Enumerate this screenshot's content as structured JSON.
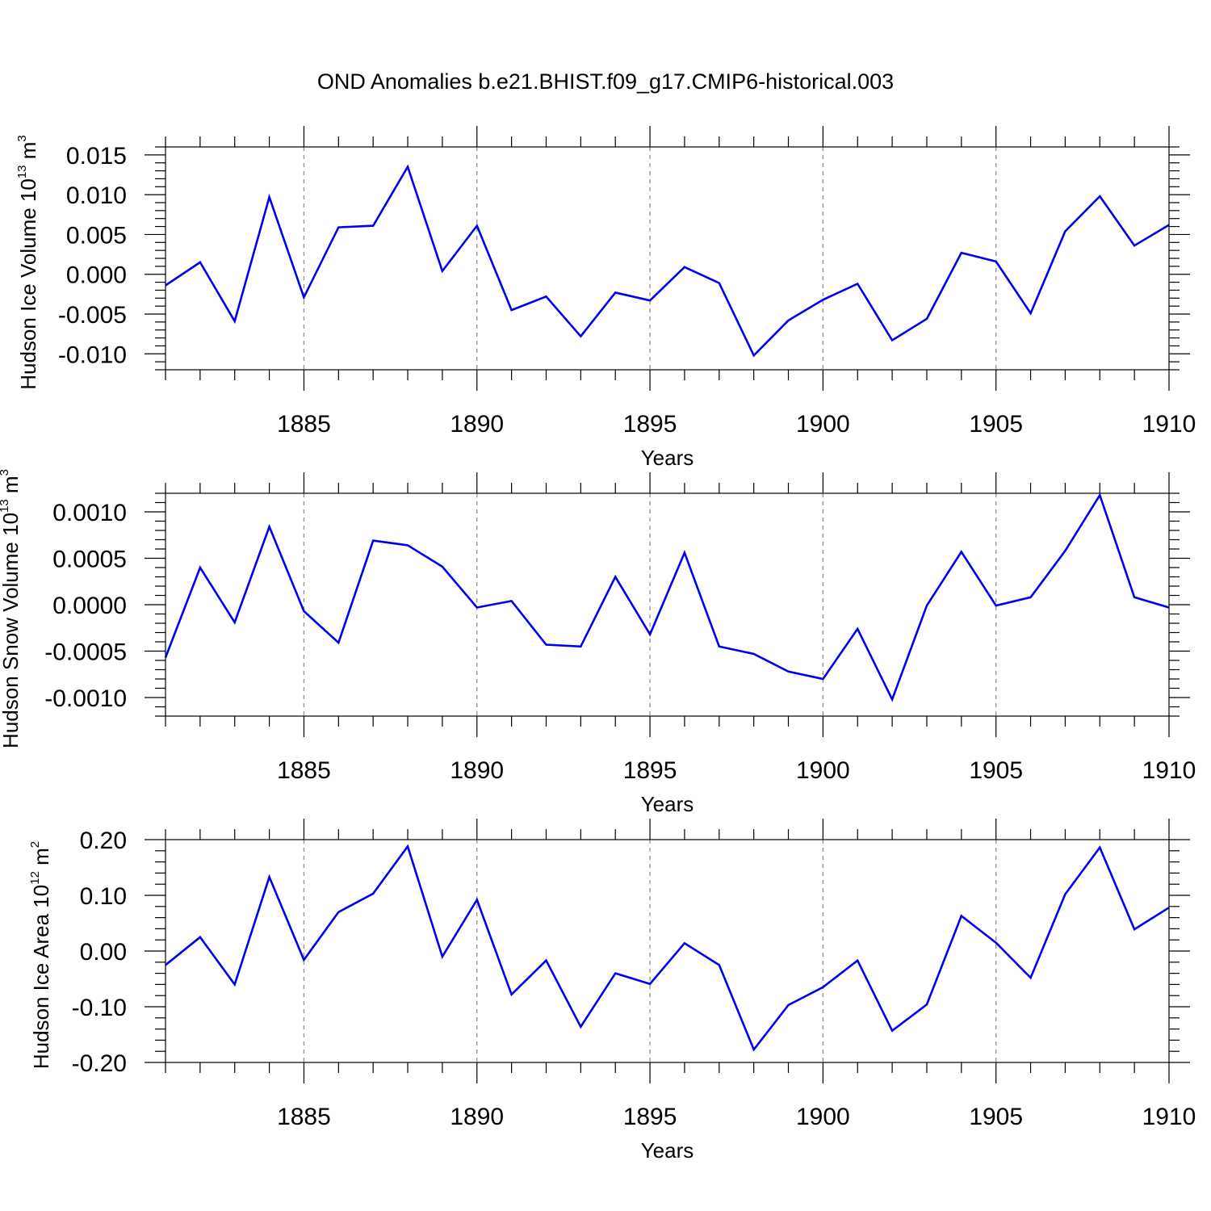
{
  "title": "OND Anomalies b.e21.BHIST.f09_g17.CMIP6-historical.003",
  "chart_data": [
    {
      "type": "line",
      "title": "OND Anomalies b.e21.BHIST.f09_g17.CMIP6-historical.003",
      "xlabel": "Years",
      "ylabel_main": "Hudson Ice Volume 10",
      "ylabel_exp": "13",
      "ylabel_unit": " m",
      "ylabel_unit_exp": "3",
      "xlim": [
        1881,
        1910
      ],
      "ylim": [
        -0.012,
        0.016
      ],
      "yticks": [
        -0.01,
        -0.005,
        0.0,
        0.005,
        0.01,
        0.015
      ],
      "ytick_labels": [
        "-0.010",
        "-0.005",
        "0.000",
        "0.005",
        "0.010",
        "0.015"
      ],
      "yminor_step": 0.001,
      "xticks": [
        1885,
        1890,
        1895,
        1900,
        1905,
        1910
      ],
      "xtick_labels": [
        "1885",
        "1890",
        "1895",
        "1900",
        "1905",
        "1910"
      ],
      "grid": "dashed vertical at major x ticks",
      "series": [
        {
          "name": "Hudson Ice Volume",
          "color": "#0000ee",
          "x": [
            1881,
            1882,
            1883,
            1884,
            1885,
            1886,
            1887,
            1888,
            1889,
            1890,
            1891,
            1892,
            1893,
            1894,
            1895,
            1896,
            1897,
            1898,
            1899,
            1900,
            1901,
            1902,
            1903,
            1904,
            1905,
            1906,
            1907,
            1908,
            1909,
            1910
          ],
          "values": [
            -0.0014,
            0.0015,
            -0.0059,
            0.0097,
            -0.0029,
            0.0059,
            0.0061,
            0.0135,
            0.0004,
            0.0061,
            -0.0045,
            -0.0028,
            -0.0078,
            -0.0023,
            -0.0033,
            0.0009,
            -0.0011,
            -0.0102,
            -0.0058,
            -0.0032,
            -0.0012,
            -0.0083,
            -0.0056,
            0.0027,
            0.0016,
            -0.0049,
            0.0054,
            0.0098,
            0.0036,
            0.0062
          ]
        }
      ]
    },
    {
      "type": "line",
      "xlabel": "Years",
      "ylabel_main": "Hudson Snow Volume 10",
      "ylabel_exp": "13",
      "ylabel_unit": " m",
      "ylabel_unit_exp": "3",
      "xlim": [
        1881,
        1910
      ],
      "ylim": [
        -0.0012,
        0.0012
      ],
      "yticks": [
        -0.001,
        -0.0005,
        0.0,
        0.0005,
        0.001
      ],
      "ytick_labels": [
        "-0.0010",
        "-0.0005",
        "0.0000",
        "0.0005",
        "0.0010"
      ],
      "yminor_step": 0.0001,
      "xticks": [
        1885,
        1890,
        1895,
        1900,
        1905,
        1910
      ],
      "xtick_labels": [
        "1885",
        "1890",
        "1895",
        "1900",
        "1905",
        "1910"
      ],
      "grid": "dashed vertical at major x ticks",
      "series": [
        {
          "name": "Hudson Snow Volume",
          "color": "#0000ee",
          "x": [
            1881,
            1882,
            1883,
            1884,
            1885,
            1886,
            1887,
            1888,
            1889,
            1890,
            1891,
            1892,
            1893,
            1894,
            1895,
            1896,
            1897,
            1898,
            1899,
            1900,
            1901,
            1902,
            1903,
            1904,
            1905,
            1906,
            1907,
            1908,
            1909,
            1910
          ],
          "values": [
            -0.00057,
            0.0004,
            -0.00019,
            0.00084,
            -7e-05,
            -0.00041,
            0.00069,
            0.00064,
            0.00041,
            -3e-05,
            4e-05,
            -0.00043,
            -0.00045,
            0.0003,
            -0.00032,
            0.00056,
            -0.00045,
            -0.00053,
            -0.00072,
            -0.0008,
            -0.00026,
            -0.00102,
            -1e-05,
            0.00057,
            -1e-05,
            8e-05,
            0.00058,
            0.00118,
            8e-05,
            -3e-05
          ]
        }
      ]
    },
    {
      "type": "line",
      "xlabel": "Years",
      "ylabel_main": "Hudson Ice Area 10",
      "ylabel_exp": "12",
      "ylabel_unit": " m",
      "ylabel_unit_exp": "2",
      "xlim": [
        1881,
        1910
      ],
      "ylim": [
        -0.2,
        0.2
      ],
      "yticks": [
        -0.2,
        -0.1,
        0.0,
        0.1,
        0.2
      ],
      "ytick_labels": [
        "-0.20",
        "-0.10",
        "0.00",
        "0.10",
        "0.20"
      ],
      "yminor_step": 0.02,
      "xticks": [
        1885,
        1890,
        1895,
        1900,
        1905,
        1910
      ],
      "xtick_labels": [
        "1885",
        "1890",
        "1895",
        "1900",
        "1905",
        "1910"
      ],
      "grid": "dashed vertical at major x ticks",
      "series": [
        {
          "name": "Hudson Ice Area",
          "color": "#0000ee",
          "x": [
            1881,
            1882,
            1883,
            1884,
            1885,
            1886,
            1887,
            1888,
            1889,
            1890,
            1891,
            1892,
            1893,
            1894,
            1895,
            1896,
            1897,
            1898,
            1899,
            1900,
            1901,
            1902,
            1903,
            1904,
            1905,
            1906,
            1907,
            1908,
            1909,
            1910
          ],
          "values": [
            -0.025,
            0.025,
            -0.06,
            0.133,
            -0.016,
            0.07,
            0.103,
            0.188,
            -0.01,
            0.092,
            -0.078,
            -0.017,
            -0.136,
            -0.04,
            -0.059,
            0.014,
            -0.025,
            -0.177,
            -0.097,
            -0.065,
            -0.017,
            -0.143,
            -0.096,
            0.063,
            0.015,
            -0.048,
            0.102,
            0.186,
            0.039,
            0.078
          ]
        }
      ]
    }
  ]
}
